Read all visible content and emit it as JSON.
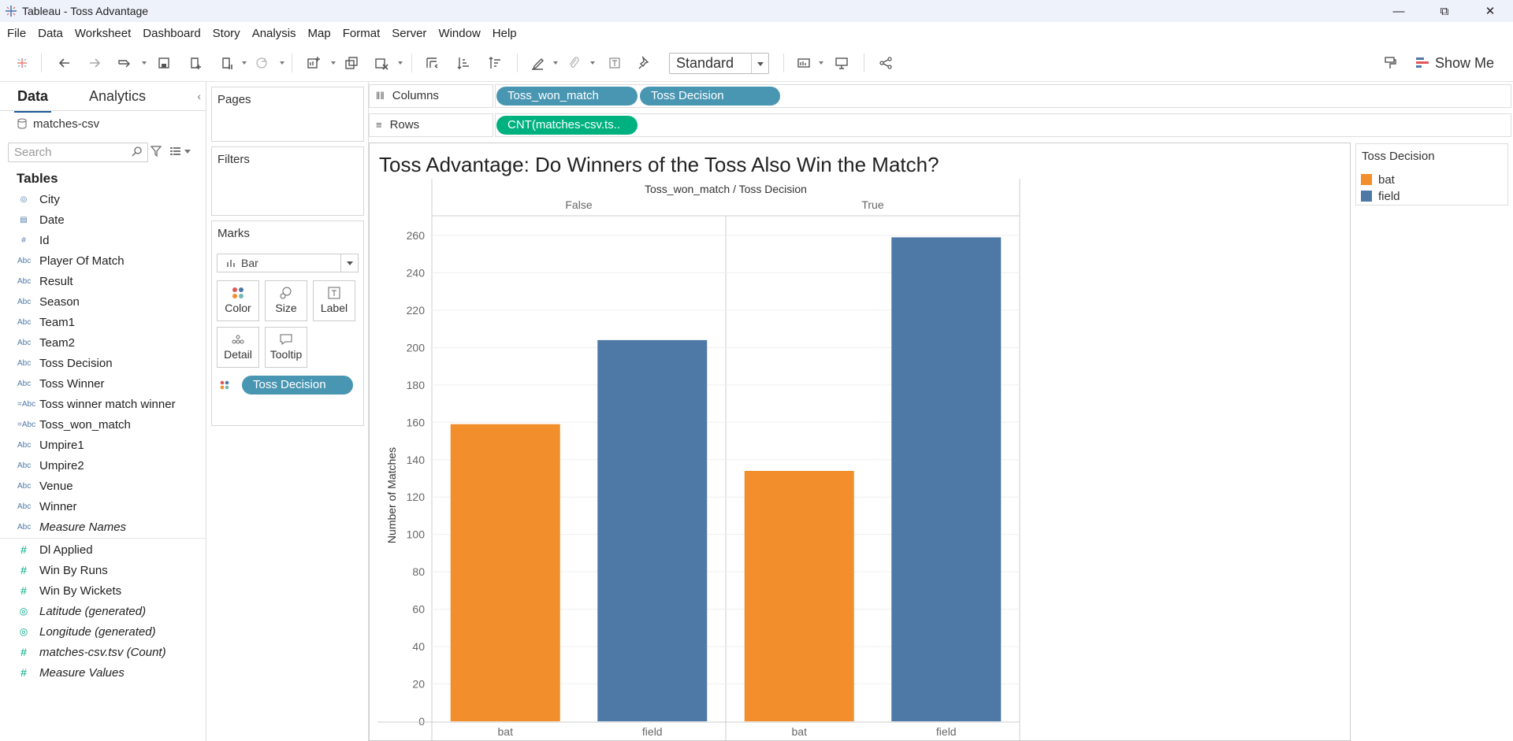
{
  "window": {
    "title": "Tableau - Toss Advantage"
  },
  "menu": [
    "File",
    "Data",
    "Worksheet",
    "Dashboard",
    "Story",
    "Analysis",
    "Map",
    "Format",
    "Server",
    "Window",
    "Help"
  ],
  "toolbar": {
    "fit": "Standard",
    "show_me": "Show Me"
  },
  "data_pane": {
    "tab_data": "Data",
    "tab_analytics": "Analytics",
    "datasource": "matches-csv",
    "search_placeholder": "Search",
    "tables_header": "Tables",
    "dimensions": [
      {
        "icon": "globe-icon",
        "name": "City"
      },
      {
        "icon": "calendar-icon",
        "name": "Date"
      },
      {
        "icon": "number-icon",
        "name": "Id"
      },
      {
        "icon": "abc-icon",
        "name": "Player Of Match"
      },
      {
        "icon": "abc-icon",
        "name": "Result"
      },
      {
        "icon": "abc-icon",
        "name": "Season"
      },
      {
        "icon": "abc-icon",
        "name": "Team1"
      },
      {
        "icon": "abc-icon",
        "name": "Team2"
      },
      {
        "icon": "abc-icon",
        "name": "Toss Decision"
      },
      {
        "icon": "abc-icon",
        "name": "Toss Winner"
      },
      {
        "icon": "calc-abc-icon",
        "name": "Toss winner match winner"
      },
      {
        "icon": "calc-abc-icon",
        "name": "Toss_won_match"
      },
      {
        "icon": "abc-icon",
        "name": "Umpire1"
      },
      {
        "icon": "abc-icon",
        "name": "Umpire2"
      },
      {
        "icon": "abc-icon",
        "name": "Venue"
      },
      {
        "icon": "abc-icon",
        "name": "Winner"
      },
      {
        "icon": "abc-icon",
        "name": "Measure Names",
        "italic": true
      }
    ],
    "measures": [
      {
        "icon": "number-icon",
        "name": "Dl Applied"
      },
      {
        "icon": "number-icon",
        "name": "Win By Runs"
      },
      {
        "icon": "number-icon",
        "name": "Win By Wickets"
      },
      {
        "icon": "globe-icon",
        "name": "Latitude (generated)",
        "italic": true
      },
      {
        "icon": "globe-icon",
        "name": "Longitude (generated)",
        "italic": true
      },
      {
        "icon": "number-icon",
        "name": "matches-csv.tsv (Count)",
        "italic": true
      },
      {
        "icon": "number-icon",
        "name": "Measure Values",
        "italic": true
      }
    ]
  },
  "cards": {
    "pages": "Pages",
    "filters": "Filters",
    "marks": "Marks",
    "mark_type": "Bar",
    "buttons": [
      "Color",
      "Size",
      "Label",
      "Detail",
      "Tooltip"
    ],
    "color_pill": "Toss Decision"
  },
  "shelves": {
    "columns_label": "Columns",
    "rows_label": "Rows",
    "columns": [
      "Toss_won_match",
      "Toss Decision"
    ],
    "rows": [
      "CNT(matches-csv.ts.."
    ]
  },
  "view": {
    "title": "Toss Advantage: Do Winners of the Toss Also Win the Match?"
  },
  "legend": {
    "title": "Toss Decision",
    "items": [
      {
        "label": "bat",
        "color": "#f28e2b"
      },
      {
        "label": "field",
        "color": "#4e79a7"
      }
    ]
  },
  "chart_data": {
    "type": "bar",
    "title": "Toss Advantage: Do Winners of the Toss Also Win the Match?",
    "header": "Toss_won_match / Toss Decision",
    "panes": [
      "False",
      "True"
    ],
    "categories": [
      "bat",
      "field"
    ],
    "series": [
      {
        "pane": "False",
        "values": [
          159,
          204
        ]
      },
      {
        "pane": "True",
        "values": [
          134,
          259
        ]
      }
    ],
    "colors": {
      "bat": "#f28e2b",
      "field": "#4e79a7"
    },
    "ylabel": "Number of Matches",
    "yticks": [
      0,
      20,
      40,
      60,
      80,
      100,
      120,
      140,
      160,
      180,
      200,
      220,
      240,
      260
    ],
    "ylim": [
      0,
      260
    ],
    "grid": true
  }
}
